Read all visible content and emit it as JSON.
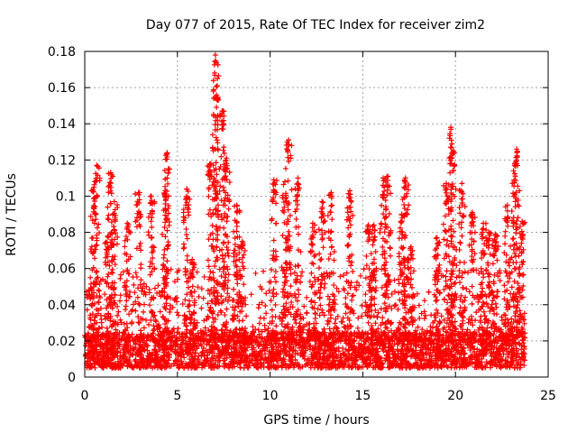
{
  "chart_data": {
    "type": "scatter",
    "title": "Day 077 of 2015, Rate Of TEC Index for receiver zim2",
    "xlabel": "GPS time / hours",
    "ylabel": "ROTI / TECUs",
    "xlim": [
      0,
      25
    ],
    "ylim": [
      0,
      0.18
    ],
    "xticks": [
      0,
      5,
      10,
      15,
      20,
      25
    ],
    "yticks": [
      0,
      0.02,
      0.04,
      0.06,
      0.08,
      0.1,
      0.12,
      0.14,
      0.16,
      0.18
    ],
    "xtick_labels": [
      "0",
      "5",
      "10",
      "15",
      "20",
      "25"
    ],
    "ytick_labels": [
      "0",
      "0.02",
      "0.04",
      "0.06",
      "0.08",
      "0.1",
      "0.12",
      "0.14",
      "0.16",
      "0.18"
    ],
    "grid": true,
    "marker": "+",
    "color": "#ff0000",
    "x_data_range": [
      0,
      23.75
    ],
    "baseline_range": [
      0.005,
      0.025
    ],
    "series": [
      {
        "name": "ROTI",
        "peaks": [
          {
            "x": 0.3,
            "y": 0.055
          },
          {
            "x": 0.5,
            "y": 0.105
          },
          {
            "x": 0.65,
            "y": 0.117
          },
          {
            "x": 1.25,
            "y": 0.078
          },
          {
            "x": 1.4,
            "y": 0.113
          },
          {
            "x": 1.6,
            "y": 0.097
          },
          {
            "x": 2.3,
            "y": 0.085
          },
          {
            "x": 2.9,
            "y": 0.102
          },
          {
            "x": 3.6,
            "y": 0.1
          },
          {
            "x": 4.35,
            "y": 0.103
          },
          {
            "x": 4.45,
            "y": 0.124
          },
          {
            "x": 5.5,
            "y": 0.104
          },
          {
            "x": 5.8,
            "y": 0.065
          },
          {
            "x": 6.8,
            "y": 0.118
          },
          {
            "x": 7.05,
            "y": 0.178
          },
          {
            "x": 7.15,
            "y": 0.161
          },
          {
            "x": 7.45,
            "y": 0.147
          },
          {
            "x": 7.65,
            "y": 0.121
          },
          {
            "x": 8.2,
            "y": 0.095
          },
          {
            "x": 8.5,
            "y": 0.075
          },
          {
            "x": 10.2,
            "y": 0.109
          },
          {
            "x": 10.8,
            "y": 0.108
          },
          {
            "x": 11.0,
            "y": 0.131
          },
          {
            "x": 11.5,
            "y": 0.11
          },
          {
            "x": 12.3,
            "y": 0.085
          },
          {
            "x": 12.8,
            "y": 0.097
          },
          {
            "x": 13.3,
            "y": 0.102
          },
          {
            "x": 14.3,
            "y": 0.103
          },
          {
            "x": 15.3,
            "y": 0.084
          },
          {
            "x": 15.6,
            "y": 0.084
          },
          {
            "x": 16.1,
            "y": 0.11
          },
          {
            "x": 16.35,
            "y": 0.111
          },
          {
            "x": 17.1,
            "y": 0.09
          },
          {
            "x": 17.3,
            "y": 0.11
          },
          {
            "x": 17.6,
            "y": 0.072
          },
          {
            "x": 19.0,
            "y": 0.077
          },
          {
            "x": 19.5,
            "y": 0.107
          },
          {
            "x": 19.75,
            "y": 0.138
          },
          {
            "x": 19.9,
            "y": 0.125
          },
          {
            "x": 20.35,
            "y": 0.107
          },
          {
            "x": 20.9,
            "y": 0.091
          },
          {
            "x": 21.5,
            "y": 0.085
          },
          {
            "x": 21.8,
            "y": 0.08
          },
          {
            "x": 22.15,
            "y": 0.079
          },
          {
            "x": 22.8,
            "y": 0.095
          },
          {
            "x": 23.2,
            "y": 0.118
          },
          {
            "x": 23.3,
            "y": 0.126
          },
          {
            "x": 23.6,
            "y": 0.086
          }
        ]
      }
    ]
  }
}
